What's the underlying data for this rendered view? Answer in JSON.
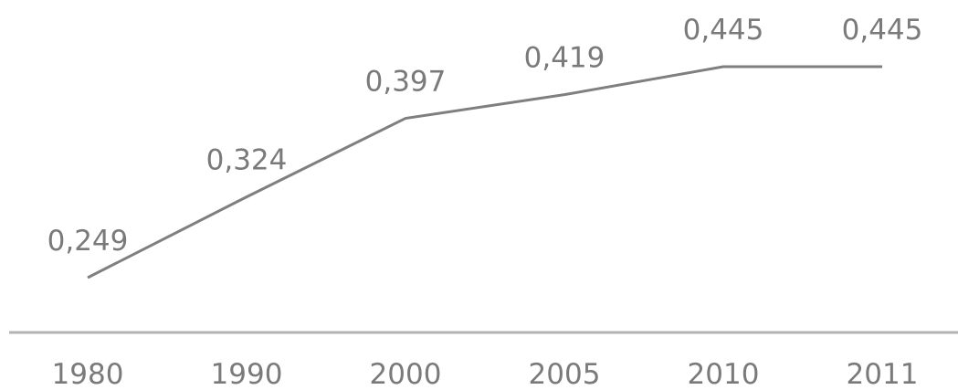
{
  "colors": {
    "line": "#7f7f7f",
    "axis": "#b3b3b3",
    "text": "#7a7a7a",
    "background": "#ffffff"
  },
  "chart_data": {
    "type": "line",
    "title": "",
    "xlabel": "",
    "ylabel": "",
    "categories": [
      "1980",
      "1990",
      "2000",
      "2005",
      "2010",
      "2011"
    ],
    "series": [
      {
        "values": [
          0.249,
          0.324,
          0.397,
          0.419,
          0.445,
          0.445
        ],
        "labels": [
          "0,249",
          "0,324",
          "0,397",
          "0,419",
          "0,445",
          "0,445"
        ]
      }
    ],
    "ylim": [
      0.15,
      0.455
    ],
    "grid": false,
    "legend": "none"
  }
}
